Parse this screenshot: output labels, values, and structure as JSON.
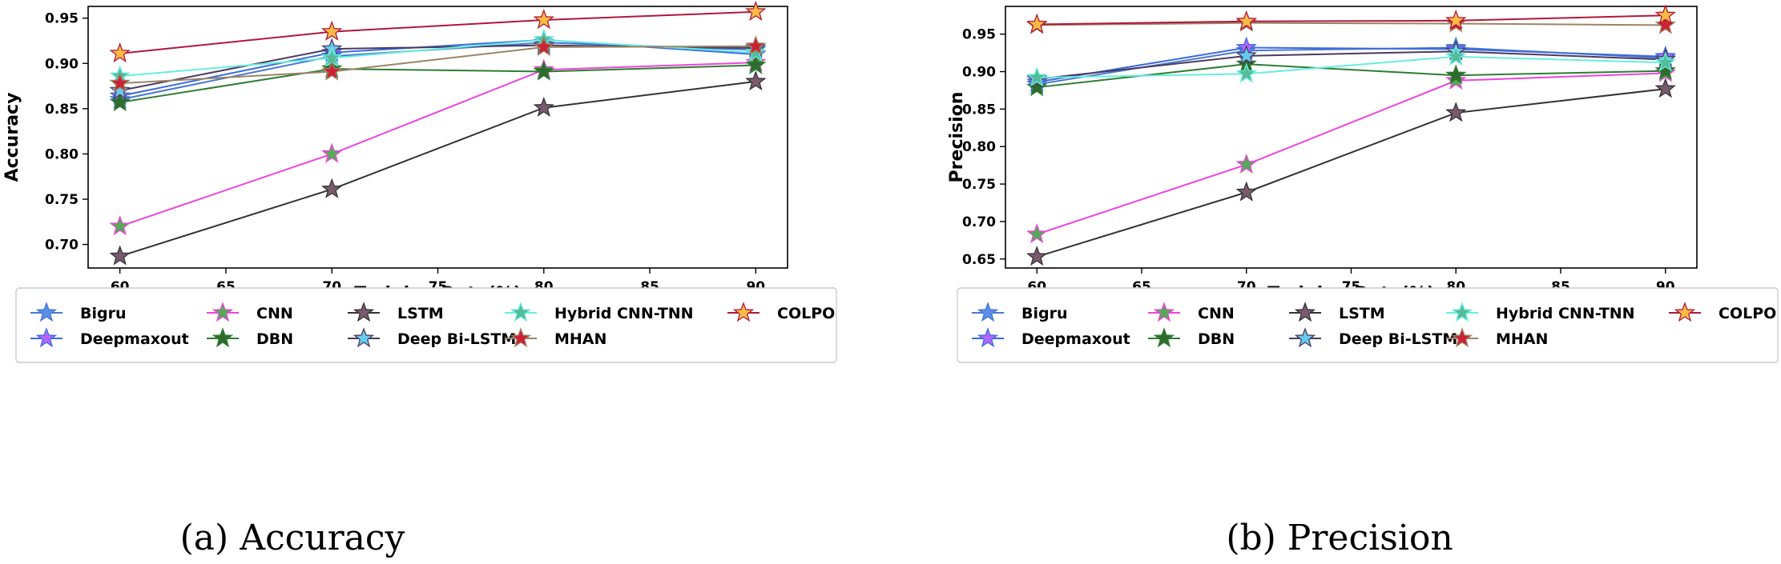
{
  "chart_data": [
    {
      "type": "line",
      "caption": "(a) Accuracy",
      "xlabel": "Training Data(%)",
      "ylabel": "Accuracy",
      "x": [
        60,
        70,
        80,
        90
      ],
      "xticks": [
        "60",
        "65",
        "70",
        "75",
        "80",
        "85",
        "90"
      ],
      "xtick_values": [
        60,
        65,
        70,
        75,
        80,
        85,
        90
      ],
      "xlim": [
        58.5,
        91.5
      ],
      "yticks": [
        "0.70",
        "0.75",
        "0.80",
        "0.85",
        "0.90",
        "0.95"
      ],
      "ytick_values": [
        0.7,
        0.75,
        0.8,
        0.85,
        0.9,
        0.95
      ],
      "ylim": [
        0.674,
        0.963
      ],
      "series": [
        {
          "name": "Bigru",
          "line_color": "#4878d0",
          "marker_color": "#5b8fe8",
          "values": [
            0.86,
            0.908,
            0.923,
            0.915
          ]
        },
        {
          "name": "Deepmaxout",
          "line_color": "#3c6be0",
          "marker_color": "#b266ff",
          "values": [
            0.864,
            0.912,
            0.926,
            0.91
          ]
        },
        {
          "name": "CNN",
          "line_color": "#ee44dd",
          "marker_color": "#55aa55",
          "values": [
            0.72,
            0.8,
            0.893,
            0.901
          ]
        },
        {
          "name": "DBN",
          "line_color": "#2e7d32",
          "marker_color": "#2e6b2e",
          "values": [
            0.857,
            0.894,
            0.891,
            0.898
          ]
        },
        {
          "name": "LSTM",
          "line_color": "#333333",
          "marker_color": "#7a5a6e",
          "values": [
            0.687,
            0.761,
            0.851,
            0.88
          ]
        },
        {
          "name": "Deep Bi-LSTM",
          "line_color": "#4b3a60",
          "marker_color": "#66ccee",
          "values": [
            0.87,
            0.916,
            0.92,
            0.917
          ]
        },
        {
          "name": "Hybrid CNN-TNN",
          "line_color": "#66eedd",
          "marker_color": "#55bb99",
          "values": [
            0.886,
            0.906,
            0.926,
            0.912
          ]
        },
        {
          "name": "MHAN",
          "line_color": "#9a8466",
          "marker_color": "#cc2233",
          "values": [
            0.878,
            0.891,
            0.918,
            0.919
          ]
        },
        {
          "name": "COLPO",
          "line_color": "#b0183c",
          "marker_color": "#ffbb44",
          "values": [
            0.911,
            0.935,
            0.948,
            0.957
          ]
        }
      ]
    },
    {
      "type": "line",
      "caption": "(b) Precision",
      "xlabel": "Training Data(%)",
      "ylabel": "Precision",
      "x": [
        60,
        70,
        80,
        90
      ],
      "xticks": [
        "60",
        "65",
        "70",
        "75",
        "80",
        "85",
        "90"
      ],
      "xtick_values": [
        60,
        65,
        70,
        75,
        80,
        85,
        90
      ],
      "xlim": [
        58.5,
        91.5
      ],
      "yticks": [
        "0.65",
        "0.70",
        "0.75",
        "0.80",
        "0.85",
        "0.90",
        "0.95"
      ],
      "ytick_values": [
        0.65,
        0.7,
        0.75,
        0.8,
        0.85,
        0.9,
        0.95
      ],
      "ylim": [
        0.638,
        0.987
      ],
      "series": [
        {
          "name": "Bigru",
          "line_color": "#4878d0",
          "marker_color": "#5b8fe8",
          "values": [
            0.883,
            0.928,
            0.932,
            0.918
          ]
        },
        {
          "name": "Deepmaxout",
          "line_color": "#3c6be0",
          "marker_color": "#b266ff",
          "values": [
            0.886,
            0.932,
            0.93,
            0.92
          ]
        },
        {
          "name": "CNN",
          "line_color": "#ee44dd",
          "marker_color": "#55aa55",
          "values": [
            0.683,
            0.776,
            0.888,
            0.898
          ]
        },
        {
          "name": "DBN",
          "line_color": "#2e7d32",
          "marker_color": "#2e6b2e",
          "values": [
            0.879,
            0.91,
            0.895,
            0.901
          ]
        },
        {
          "name": "LSTM",
          "line_color": "#333333",
          "marker_color": "#7a5a6e",
          "values": [
            0.653,
            0.739,
            0.845,
            0.877
          ]
        },
        {
          "name": "Deep Bi-LSTM",
          "line_color": "#4b3a60",
          "marker_color": "#66ccee",
          "values": [
            0.89,
            0.921,
            0.927,
            0.916
          ]
        },
        {
          "name": "Hybrid CNN-TNN",
          "line_color": "#66eedd",
          "marker_color": "#55bb99",
          "values": [
            0.892,
            0.897,
            0.92,
            0.912
          ]
        },
        {
          "name": "MHAN",
          "line_color": "#9a8466",
          "marker_color": "#cc2233",
          "values": [
            0.962,
            0.965,
            0.964,
            0.962
          ]
        },
        {
          "name": "COLPO",
          "line_color": "#b0183c",
          "marker_color": "#ffbb44",
          "values": [
            0.963,
            0.967,
            0.968,
            0.975
          ]
        }
      ]
    }
  ]
}
